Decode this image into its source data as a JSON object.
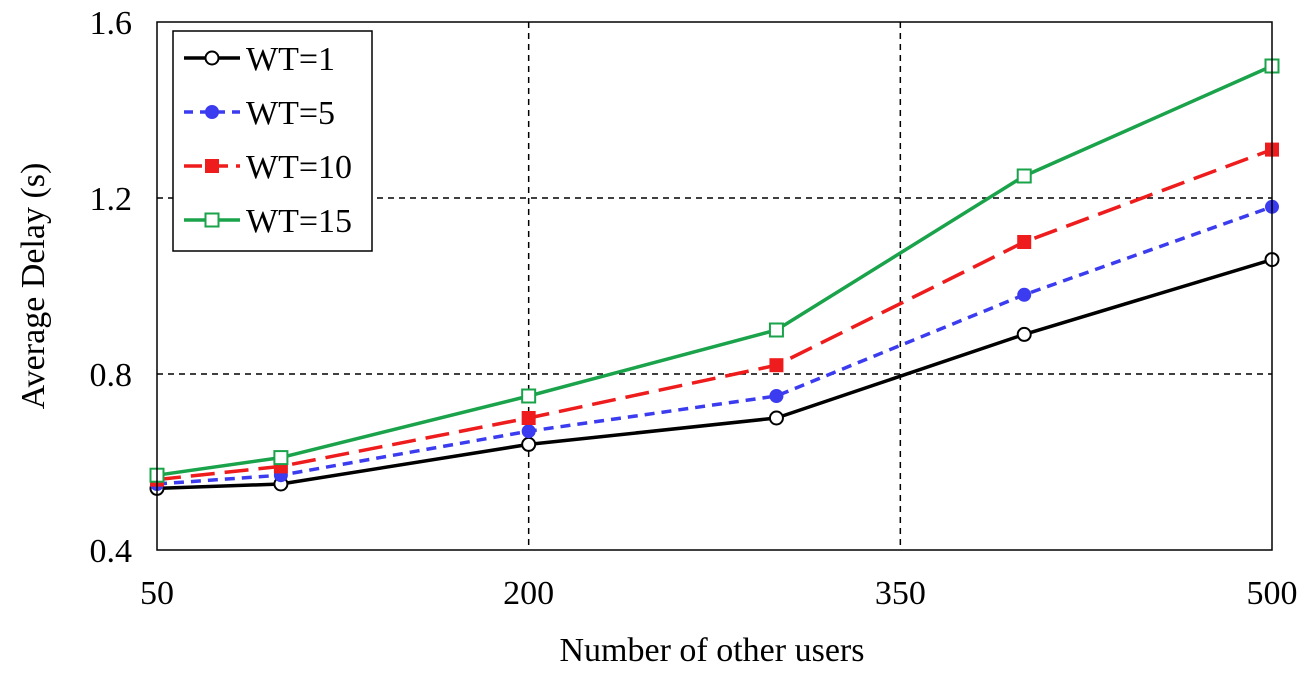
{
  "chart_data": {
    "type": "line",
    "title": "",
    "xlabel": "Number of other users",
    "ylabel": "Average Delay (s)",
    "x": [
      50,
      100,
      200,
      300,
      400,
      500
    ],
    "xticks": [
      50,
      200,
      350,
      500
    ],
    "xtick_labels": [
      "50",
      "200",
      "350",
      "500"
    ],
    "xlim": [
      50,
      500
    ],
    "yticks": [
      0.4,
      0.8,
      1.2,
      1.6
    ],
    "ytick_labels": [
      "0.4",
      "0.8",
      "1.2",
      "1.6"
    ],
    "ylim": [
      0.4,
      1.6
    ],
    "grid": "dashed, at x=200,350 and y=0.8,1.2",
    "legend_position": "top-left",
    "series": [
      {
        "name": "WT=1",
        "values": [
          0.54,
          0.55,
          0.64,
          0.7,
          0.89,
          1.06
        ],
        "color": "#000000",
        "dash": "solid",
        "marker": "circle-open"
      },
      {
        "name": "WT=5",
        "values": [
          0.55,
          0.57,
          0.67,
          0.75,
          0.98,
          1.18
        ],
        "color": "#3b3bf0",
        "dash": "short",
        "marker": "circle-filled"
      },
      {
        "name": "WT=10",
        "values": [
          0.56,
          0.59,
          0.7,
          0.82,
          1.1,
          1.31
        ],
        "color": "#ee1c1c",
        "dash": "long",
        "marker": "square-filled"
      },
      {
        "name": "WT=15",
        "values": [
          0.57,
          0.61,
          0.75,
          0.9,
          1.25,
          1.5
        ],
        "color": "#1aa34a",
        "dash": "solid",
        "marker": "square-open"
      }
    ]
  }
}
